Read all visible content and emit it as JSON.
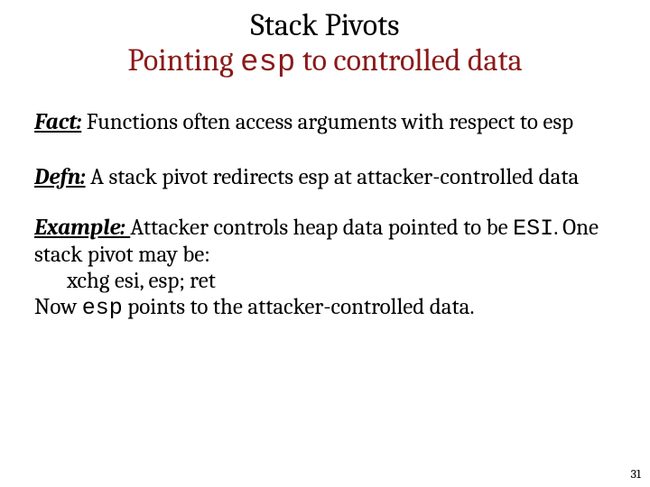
{
  "title": {
    "line1": "Stack Pivots",
    "line2_pre": "Pointing ",
    "line2_mono": "esp",
    "line2_post": " to controlled data"
  },
  "fact": {
    "label": "Fact:",
    "text": " Functions often access arguments with respect to esp"
  },
  "defn": {
    "label": "Defn:",
    "text": " A stack pivot redirects esp at attacker-controlled data"
  },
  "example": {
    "label": "Example: ",
    "line1_pre": "Attacker controls heap data pointed to be ",
    "line1_mono": "ESI",
    "line1_post": ". One stack pivot may be:",
    "code": "xchg esi, esp; ret",
    "line3_pre": "Now ",
    "line3_mono": "esp",
    "line3_post": " points to the attacker-controlled data."
  },
  "pagenum": "31",
  "colors": {
    "heading": "#8b1a1a",
    "text": "#000000",
    "background": "#ffffff"
  }
}
